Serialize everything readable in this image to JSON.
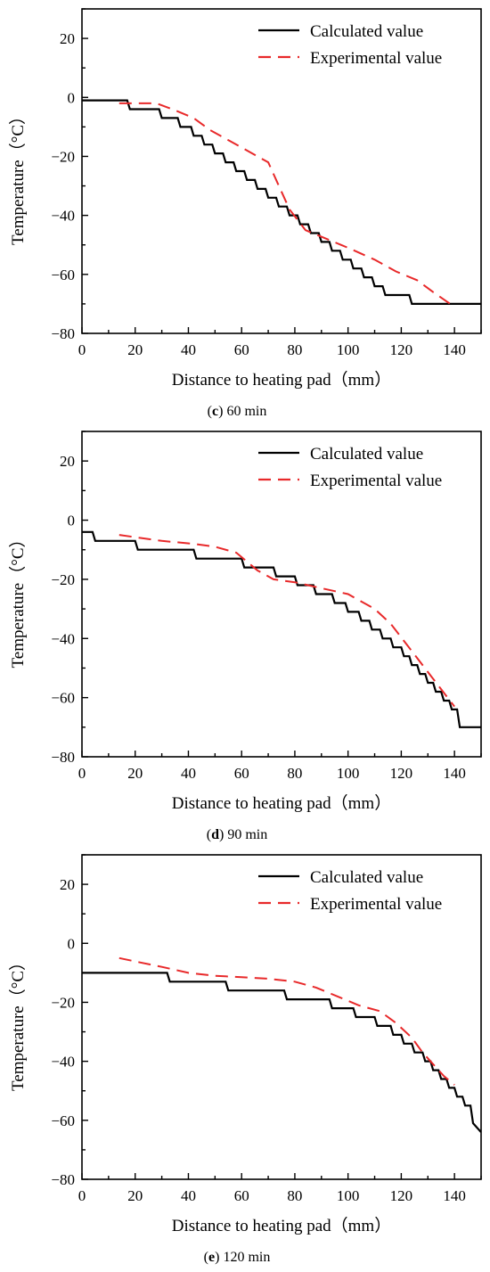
{
  "chart_data": [
    {
      "type": "line",
      "title": "",
      "caption_letter": "c",
      "caption_text": " 60 min",
      "xlabel": "Distance to heating pad（mm）",
      "ylabel": "Temperature（°C）",
      "xlim": [
        0,
        150
      ],
      "ylim": [
        -80,
        30
      ],
      "xticks": [
        0,
        20,
        40,
        60,
        80,
        100,
        120,
        140
      ],
      "yticks": [
        -80,
        -60,
        -40,
        -20,
        0,
        20
      ],
      "grid": false,
      "legend_position": "top-right",
      "series": [
        {
          "name": "Calculated value",
          "style": "solid",
          "color": "#000000",
          "x": [
            0,
            17,
            18,
            29,
            30,
            36,
            37,
            41,
            42,
            45,
            46,
            49,
            50,
            53,
            54,
            57,
            58,
            61,
            62,
            65,
            66,
            69,
            70,
            73,
            74,
            77,
            78,
            81,
            82,
            85,
            86,
            89,
            90,
            93,
            94,
            97,
            98,
            101,
            102,
            105,
            106,
            109,
            110,
            113,
            114,
            117,
            118,
            123,
            124,
            150
          ],
          "y": [
            -1,
            -1,
            -4,
            -4,
            -7,
            -7,
            -10,
            -10,
            -13,
            -13,
            -16,
            -16,
            -19,
            -19,
            -22,
            -22,
            -25,
            -25,
            -28,
            -28,
            -31,
            -31,
            -34,
            -34,
            -37,
            -37,
            -40,
            -40,
            -43,
            -43,
            -46,
            -46,
            -49,
            -49,
            -52,
            -52,
            -55,
            -55,
            -58,
            -58,
            -61,
            -61,
            -64,
            -64,
            -67,
            -67,
            -67,
            -67,
            -70,
            -70
          ]
        },
        {
          "name": "Experimental value",
          "style": "dashed",
          "color": "#e8292a",
          "x": [
            14,
            28,
            34,
            42,
            48,
            56,
            64,
            70,
            74,
            78,
            84,
            92,
            100,
            110,
            118,
            126,
            132,
            140
          ],
          "y": [
            -2,
            -2,
            -4,
            -7,
            -11,
            -15,
            -19,
            -22,
            -30,
            -38,
            -45,
            -48,
            -51,
            -55,
            -59,
            -62,
            -66,
            -71
          ]
        }
      ]
    },
    {
      "type": "line",
      "title": "",
      "caption_letter": "d",
      "caption_text": " 90 min",
      "xlabel": "Distance to heating pad（mm）",
      "ylabel": "Temperature（°C）",
      "xlim": [
        0,
        150
      ],
      "ylim": [
        -80,
        30
      ],
      "xticks": [
        0,
        20,
        40,
        60,
        80,
        100,
        120,
        140
      ],
      "yticks": [
        -80,
        -60,
        -40,
        -20,
        0,
        20
      ],
      "grid": false,
      "legend_position": "top-right",
      "series": [
        {
          "name": "Calculated value",
          "style": "solid",
          "color": "#000000",
          "x": [
            0,
            4,
            5,
            20,
            21,
            42,
            43,
            60,
            61,
            72,
            73,
            80,
            81,
            87,
            88,
            94,
            95,
            99,
            100,
            104,
            105,
            108,
            109,
            112,
            113,
            116,
            117,
            120,
            121,
            123,
            124,
            126,
            127,
            129,
            130,
            132,
            133,
            135,
            136,
            138,
            139,
            141,
            142,
            150
          ],
          "y": [
            -4,
            -4,
            -7,
            -7,
            -10,
            -10,
            -13,
            -13,
            -16,
            -16,
            -19,
            -19,
            -22,
            -22,
            -25,
            -25,
            -28,
            -28,
            -31,
            -31,
            -34,
            -34,
            -37,
            -37,
            -40,
            -40,
            -43,
            -43,
            -46,
            -46,
            -49,
            -49,
            -52,
            -52,
            -55,
            -55,
            -58,
            -58,
            -61,
            -61,
            -64,
            -64,
            -70,
            -70
          ]
        },
        {
          "name": "Experimental value",
          "style": "dashed",
          "color": "#e8292a",
          "x": [
            14,
            22,
            30,
            42,
            50,
            58,
            62,
            66,
            72,
            80,
            90,
            100,
            110,
            116,
            122,
            128,
            134,
            140
          ],
          "y": [
            -5,
            -6,
            -7,
            -8,
            -9,
            -11,
            -14,
            -17,
            -20,
            -21,
            -23,
            -25,
            -30,
            -35,
            -42,
            -49,
            -56,
            -63
          ]
        }
      ]
    },
    {
      "type": "line",
      "title": "",
      "caption_letter": "e",
      "caption_text": " 120 min",
      "xlabel": "Distance to heating pad（mm）",
      "ylabel": "Temperature（°C）",
      "xlim": [
        0,
        150
      ],
      "ylim": [
        -80,
        30
      ],
      "xticks": [
        0,
        20,
        40,
        60,
        80,
        100,
        120,
        140
      ],
      "yticks": [
        -80,
        -60,
        -40,
        -20,
        0,
        20
      ],
      "grid": false,
      "legend_position": "top-right",
      "series": [
        {
          "name": "Calculated value",
          "style": "solid",
          "color": "#000000",
          "x": [
            0,
            32,
            33,
            54,
            55,
            76,
            77,
            93,
            94,
            102,
            103,
            110,
            111,
            116,
            117,
            120,
            121,
            124,
            125,
            128,
            129,
            131,
            132,
            134,
            135,
            137,
            138,
            140,
            141,
            143,
            144,
            146,
            147,
            150
          ],
          "y": [
            -10,
            -10,
            -13,
            -13,
            -16,
            -16,
            -19,
            -19,
            -22,
            -22,
            -25,
            -25,
            -28,
            -28,
            -31,
            -31,
            -34,
            -34,
            -37,
            -37,
            -40,
            -40,
            -43,
            -43,
            -46,
            -46,
            -49,
            -49,
            -52,
            -52,
            -55,
            -55,
            -61,
            -64
          ]
        },
        {
          "name": "Experimental value",
          "style": "dashed",
          "color": "#e8292a",
          "x": [
            14,
            22,
            30,
            40,
            50,
            60,
            70,
            80,
            88,
            96,
            104,
            112,
            118,
            124,
            128,
            132,
            136,
            140
          ],
          "y": [
            -5,
            -6.5,
            -8,
            -10,
            -11,
            -11.5,
            -12,
            -13,
            -15,
            -18,
            -21,
            -23,
            -27,
            -32,
            -37,
            -41,
            -45,
            -48
          ]
        }
      ]
    }
  ]
}
